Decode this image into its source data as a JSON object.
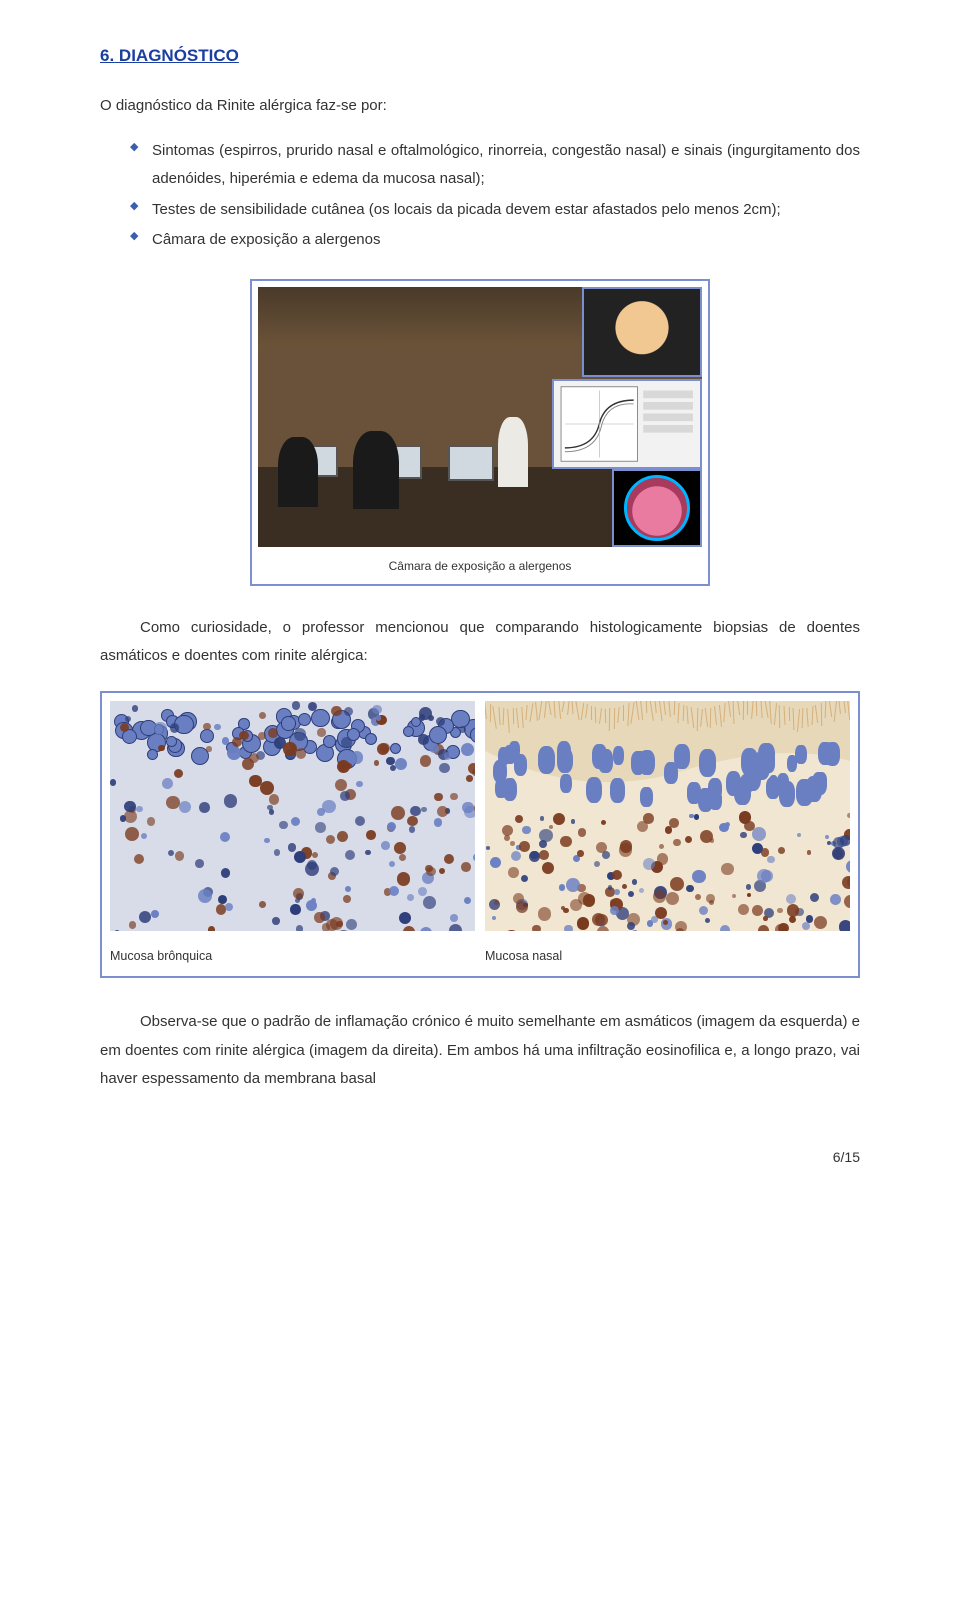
{
  "section": {
    "number": "6.",
    "title": "DIAGNÓSTICO",
    "title_color": "#1b3fa0"
  },
  "intro": "O diagnóstico da Rinite alérgica faz-se por:",
  "bullets": [
    "Sintomas (espirros, prurido nasal e oftalmológico, rinorreia, congestão nasal) e sinais (ingurgitamento dos adenóides, hiperémia e edema da mucosa nasal);",
    "Testes de sensibilidade cutânea (os locais da picada devem estar afastados pelo menos 2cm);",
    "Câmara de exposição a alergenos"
  ],
  "figure1": {
    "caption": "Câmara de exposição a alergenos",
    "border_color": "#7b8fcf",
    "scope_ring_color": "#00b4ff",
    "curve_color": "#333333"
  },
  "paragraph": "Como curiosidade, o professor mencionou que comparando histologicamente biopsias de doentes asmáticos e doentes com rinite alérgica:",
  "figure2": {
    "left_caption": "Mucosa brônquica",
    "right_caption": "Mucosa nasal",
    "border_color": "#7b8fcf",
    "left_bg": "#d8dce8",
    "right_bg": "#f0e6d2",
    "spot_colors": {
      "dark_blue": "#2e3e7a",
      "mid_blue": "#6a7fc2",
      "brown": "#7a3a1e",
      "light": "#d9def0",
      "tan": "#d6b07a"
    }
  },
  "conclusion": "Observa-se que o padrão de inflamação crónico é muito semelhante em asmáticos (imagem da esquerda) e em doentes com rinite alérgica (imagem da direita). Em ambos há uma infiltração eosinofilica e, a longo prazo, vai haver espessamento da membrana basal",
  "page_number": "6/15",
  "style": {
    "body_text_color": "#333333",
    "bullet_marker_color": "#3a5fb0",
    "font_family": "Verdana, Geneva, sans-serif"
  }
}
